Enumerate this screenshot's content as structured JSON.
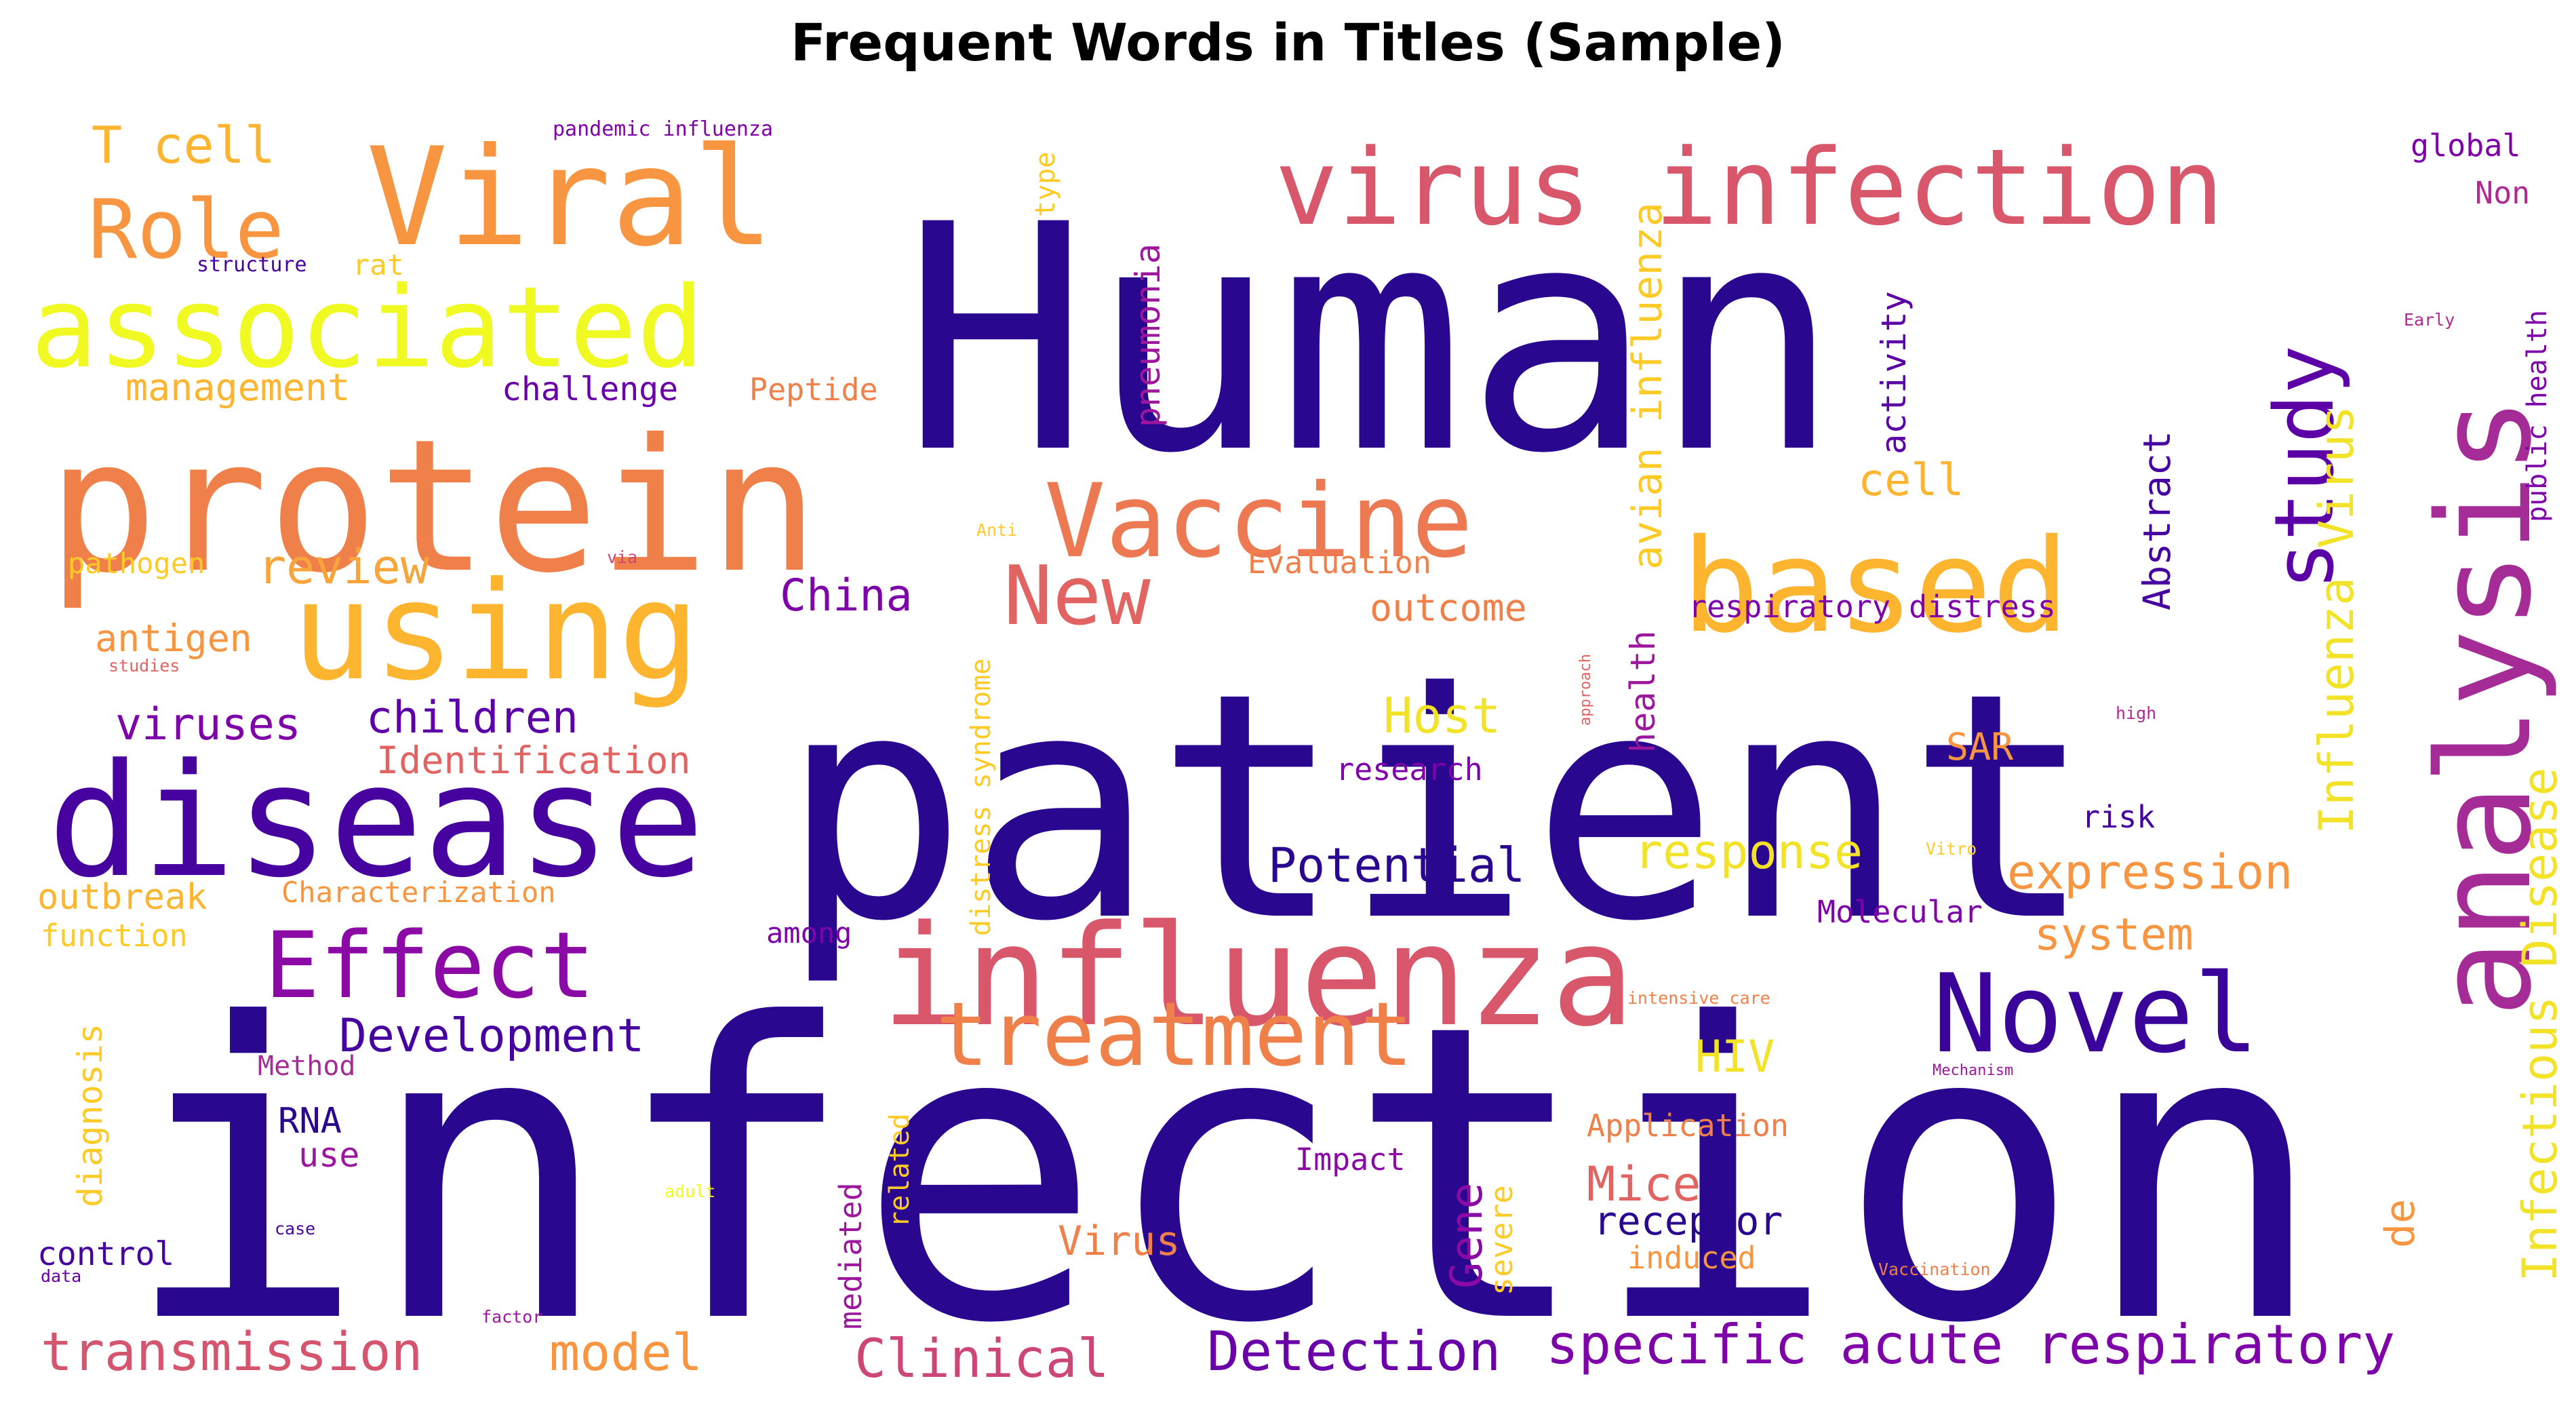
{
  "chart_data": {
    "type": "wordcloud",
    "title": "Frequent Words in Titles (Sample)",
    "colormap": "plasma",
    "words": [
      {
        "text": "infection",
        "color": "#2a078f"
      },
      {
        "text": "patient",
        "color": "#2a078f"
      },
      {
        "text": "Human",
        "color": "#2a078f"
      },
      {
        "text": "disease",
        "color": "#46039f"
      },
      {
        "text": "protein",
        "color": "#f0804a"
      },
      {
        "text": "influenza",
        "color": "#d8576b"
      },
      {
        "text": "analysis",
        "color": "#a52c97"
      },
      {
        "text": "virus infection",
        "color": "#d8576b"
      },
      {
        "text": "associated",
        "color": "#f0f921"
      },
      {
        "text": "Viral",
        "color": "#f89540"
      },
      {
        "text": "using",
        "color": "#fdb42f"
      },
      {
        "text": "based",
        "color": "#fdb42f"
      },
      {
        "text": "Vaccine",
        "color": "#ed7953"
      },
      {
        "text": "Novel",
        "color": "#3a049a"
      },
      {
        "text": "treatment",
        "color": "#f0804a"
      },
      {
        "text": "Effect",
        "color": "#8b0aa5"
      },
      {
        "text": "Role",
        "color": "#f89540"
      },
      {
        "text": "study",
        "color": "#5c01a6"
      },
      {
        "text": "New",
        "color": "#e16462"
      },
      {
        "text": "Influenza Virus",
        "color": "#f2e328"
      },
      {
        "text": "Infectious Disease",
        "color": "#f2e328"
      },
      {
        "text": "specific acute respiratory",
        "color": "#7e03a8"
      },
      {
        "text": "Detection",
        "color": "#6a00a8"
      },
      {
        "text": "Clinical",
        "color": "#cc4778"
      },
      {
        "text": "transmission",
        "color": "#d5546e"
      },
      {
        "text": "avian influenza",
        "color": "#fdca26"
      },
      {
        "text": "T cell",
        "color": "#fdb42f"
      },
      {
        "text": "Development",
        "color": "#46039f"
      },
      {
        "text": "Potential",
        "color": "#2a078f"
      },
      {
        "text": "expression",
        "color": "#f89540"
      },
      {
        "text": "response",
        "color": "#f2e328"
      },
      {
        "text": "children",
        "color": "#5c01a6"
      },
      {
        "text": "review",
        "color": "#f7a43a"
      },
      {
        "text": "China",
        "color": "#7e03a8"
      },
      {
        "text": "viruses",
        "color": "#7e03a8"
      },
      {
        "text": "model",
        "color": "#f89540"
      },
      {
        "text": "Mice",
        "color": "#e16462"
      },
      {
        "text": "Abstract",
        "color": "#46039f"
      },
      {
        "text": "receptor",
        "color": "#2a078f"
      },
      {
        "text": "system",
        "color": "#f89540"
      },
      {
        "text": "Host",
        "color": "#f2e328"
      },
      {
        "text": "pneumonia",
        "color": "#9c179e"
      },
      {
        "text": "activity",
        "color": "#5c01a6"
      },
      {
        "text": "HIV",
        "color": "#f2e328"
      },
      {
        "text": "Gene",
        "color": "#8b0aa5"
      },
      {
        "text": "severe",
        "color": "#fdca26"
      },
      {
        "text": "Identification",
        "color": "#e16462"
      },
      {
        "text": "outbreak",
        "color": "#fdb42f"
      },
      {
        "text": "antigen",
        "color": "#f89540"
      },
      {
        "text": "outcome",
        "color": "#f0804a"
      },
      {
        "text": "management",
        "color": "#fdb42f"
      },
      {
        "text": "cell",
        "color": "#fdb42f"
      },
      {
        "text": "health",
        "color": "#9c179e"
      },
      {
        "text": "Virus",
        "color": "#f0804a"
      },
      {
        "text": "diagnosis",
        "color": "#fdca26"
      },
      {
        "text": "RNA",
        "color": "#2a078f"
      },
      {
        "text": "SAR",
        "color": "#f89540"
      },
      {
        "text": "de",
        "color": "#f89540"
      },
      {
        "text": "mediated",
        "color": "#9c179e"
      },
      {
        "text": "respiratory distress",
        "color": "#7e03a8"
      },
      {
        "text": "distress syndrome",
        "color": "#fdca26"
      },
      {
        "text": "Application",
        "color": "#f0804a"
      },
      {
        "text": "research",
        "color": "#7e03a8"
      },
      {
        "text": "Molecular",
        "color": "#7e03a8"
      },
      {
        "text": "risk",
        "color": "#46039f"
      },
      {
        "text": "challenge",
        "color": "#6a00a8"
      },
      {
        "text": "Peptide",
        "color": "#f0804a"
      },
      {
        "text": "Evaluation",
        "color": "#f0804a"
      },
      {
        "text": "Characterization",
        "color": "#f89540"
      },
      {
        "text": "use",
        "color": "#9c179e"
      },
      {
        "text": "control",
        "color": "#46039f"
      },
      {
        "text": "induced",
        "color": "#f89540"
      },
      {
        "text": "Impact",
        "color": "#8b0aa5"
      },
      {
        "text": "function",
        "color": "#fdca26"
      },
      {
        "text": "among",
        "color": "#7e03a8"
      },
      {
        "text": "related",
        "color": "#fdca26"
      },
      {
        "text": "pathogen",
        "color": "#fdca26"
      },
      {
        "text": "global",
        "color": "#7e03a8"
      },
      {
        "text": "Non",
        "color": "#b12a90"
      },
      {
        "text": "public health",
        "color": "#7e03a8"
      },
      {
        "text": "Method",
        "color": "#a52c97"
      },
      {
        "text": "type",
        "color": "#fdca26"
      },
      {
        "text": "rat",
        "color": "#fdca26"
      },
      {
        "text": "structure",
        "color": "#46039f"
      },
      {
        "text": "pandemic influenza",
        "color": "#7e03a8"
      },
      {
        "text": "Early",
        "color": "#b12a90"
      },
      {
        "text": "Anti",
        "color": "#fdca26"
      },
      {
        "text": "via",
        "color": "#cc4778"
      },
      {
        "text": "studies",
        "color": "#e16462"
      },
      {
        "text": "approach",
        "color": "#e16462"
      },
      {
        "text": "high",
        "color": "#b12a90"
      },
      {
        "text": "Vitro",
        "color": "#fdca26"
      },
      {
        "text": "intensive care",
        "color": "#f0804a"
      },
      {
        "text": "Mechanism",
        "color": "#9c179e"
      },
      {
        "text": "adult",
        "color": "#f0f921"
      },
      {
        "text": "case",
        "color": "#46039f"
      },
      {
        "text": "data",
        "color": "#6a00a8"
      },
      {
        "text": "factor",
        "color": "#9c179e"
      },
      {
        "text": "Vaccination",
        "color": "#f0804a"
      }
    ]
  }
}
